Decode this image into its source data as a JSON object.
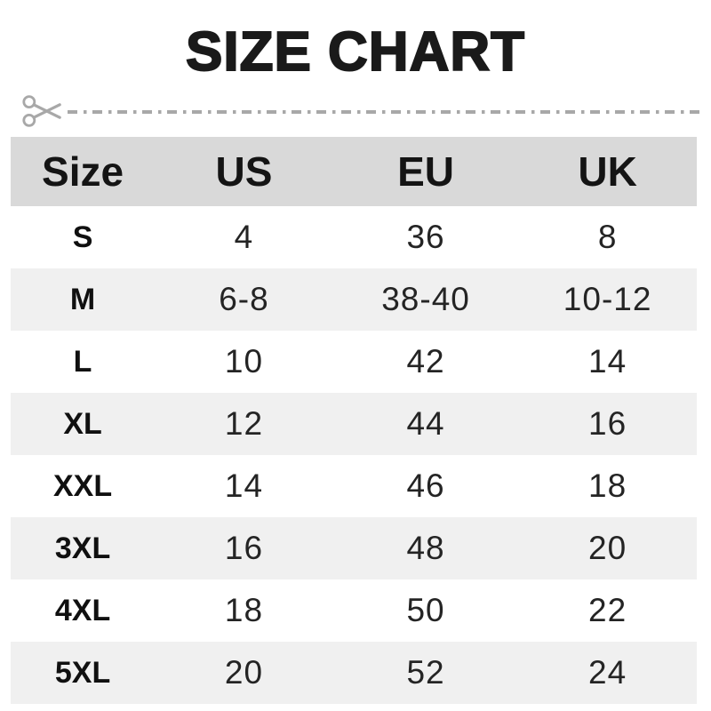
{
  "title": "SIZE CHART",
  "icons": {
    "cut": "scissors-icon"
  },
  "colors": {
    "title_text": "#1a1a1a",
    "header_bg": "#d9d9d9",
    "alt_row_bg": "#f0f0f0",
    "cut_line": "#a8a8a8"
  },
  "table": {
    "headers": [
      "Size",
      "US",
      "EU",
      "UK"
    ],
    "rows": [
      [
        "S",
        "4",
        "36",
        "8"
      ],
      [
        "M",
        "6-8",
        "38-40",
        "10-12"
      ],
      [
        "L",
        "10",
        "42",
        "14"
      ],
      [
        "XL",
        "12",
        "44",
        "16"
      ],
      [
        "XXL",
        "14",
        "46",
        "18"
      ],
      [
        "3XL",
        "16",
        "48",
        "20"
      ],
      [
        "4XL",
        "18",
        "50",
        "22"
      ],
      [
        "5XL",
        "20",
        "52",
        "24"
      ]
    ]
  },
  "chart_data": {
    "type": "table",
    "title": "SIZE CHART",
    "columns": [
      "Size",
      "US",
      "EU",
      "UK"
    ],
    "rows": [
      [
        "S",
        "4",
        "36",
        "8"
      ],
      [
        "M",
        "6-8",
        "38-40",
        "10-12"
      ],
      [
        "L",
        "10",
        "42",
        "14"
      ],
      [
        "XL",
        "12",
        "44",
        "16"
      ],
      [
        "XXL",
        "14",
        "46",
        "18"
      ],
      [
        "3XL",
        "16",
        "48",
        "20"
      ],
      [
        "4XL",
        "18",
        "50",
        "22"
      ],
      [
        "5XL",
        "20",
        "52",
        "24"
      ]
    ]
  }
}
